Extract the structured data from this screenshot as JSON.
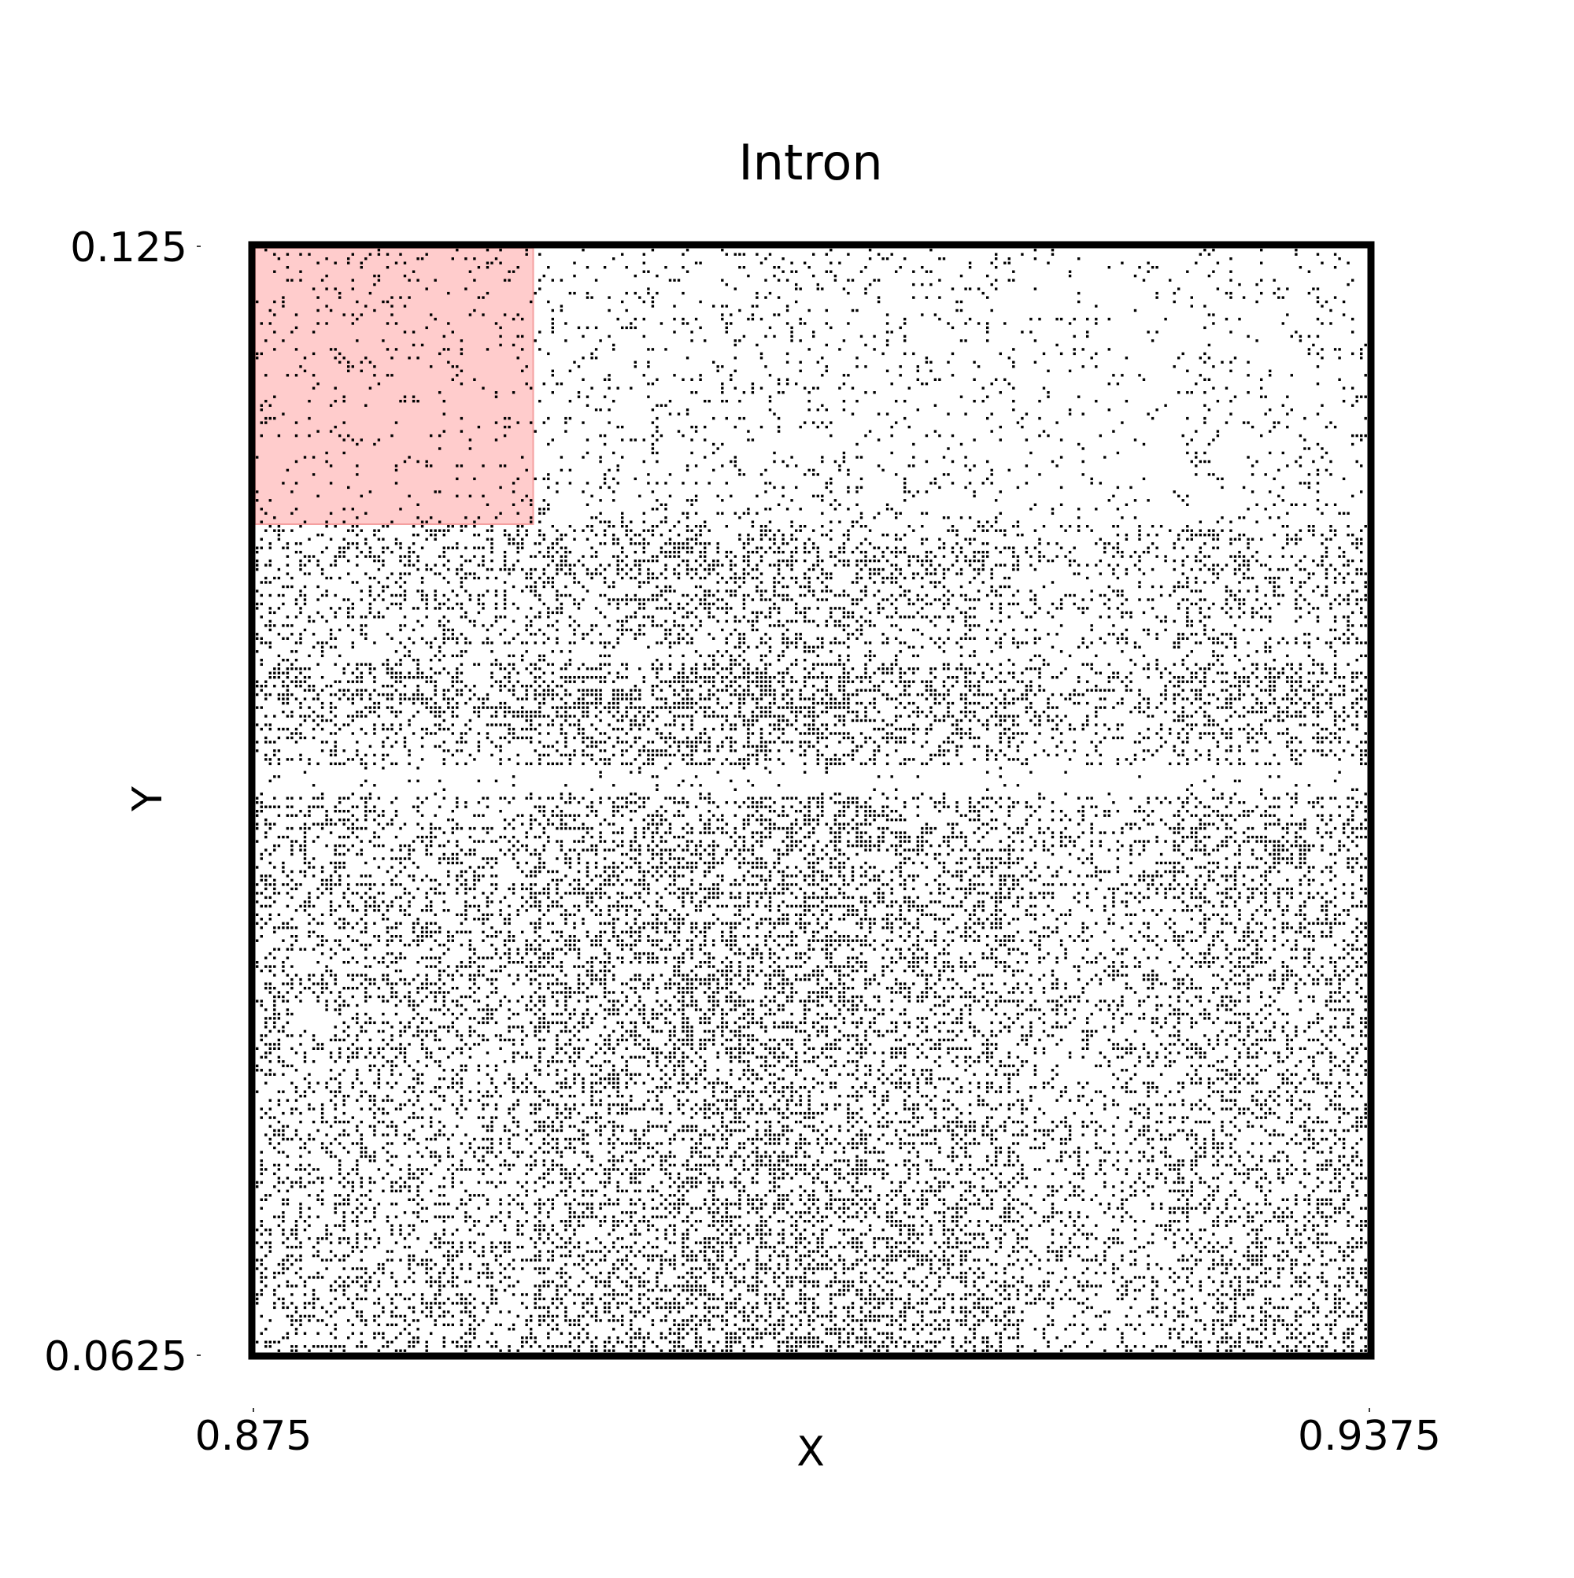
{
  "chart_data": {
    "type": "scatter",
    "title": "Intron",
    "xlabel": "X",
    "ylabel": "Y",
    "xlim": [
      0.875,
      0.9375
    ],
    "ylim": [
      0.0625,
      0.125
    ],
    "x_ticks": [
      "0.875",
      "0.9375"
    ],
    "y_ticks": [
      "0.125",
      "0.0625"
    ],
    "grid": false,
    "legend": "none",
    "highlight_region": {
      "x": [
        0.875,
        0.890625
      ],
      "y": [
        0.109375,
        0.125
      ],
      "color": "#ffcccc"
    },
    "point_color": "#000000",
    "frame_color": "#000000",
    "grid_cells_per_axis": 256,
    "row_density_bands": [
      {
        "y": [
          0.109375,
          0.125
        ],
        "density": 0.09
      },
      {
        "y": [
          0.1025,
          0.109375
        ],
        "density": 0.3
      },
      {
        "y": [
          0.1015,
          0.1025
        ],
        "density": 0.16
      },
      {
        "y": [
          0.0985,
          0.1015
        ],
        "density": 0.42
      },
      {
        "y": [
          0.0958,
          0.0985
        ],
        "density": 0.34
      },
      {
        "y": [
          0.094,
          0.0958
        ],
        "density": 0.05
      },
      {
        "y": [
          0.0625,
          0.094
        ],
        "density": 0.36
      }
    ],
    "column_density_factors": [
      {
        "x": [
          0.875,
          0.890625
        ],
        "factor": 0.9
      },
      {
        "x": [
          0.890625,
          0.8985
        ],
        "factor": 1.15
      },
      {
        "x": [
          0.8985,
          0.9095
        ],
        "factor": 1.3
      },
      {
        "x": [
          0.9095,
          0.918
        ],
        "factor": 1.05
      },
      {
        "x": [
          0.918,
          0.9265
        ],
        "factor": 0.7
      },
      {
        "x": [
          0.9265,
          0.9375
        ],
        "factor": 1.0
      }
    ]
  }
}
